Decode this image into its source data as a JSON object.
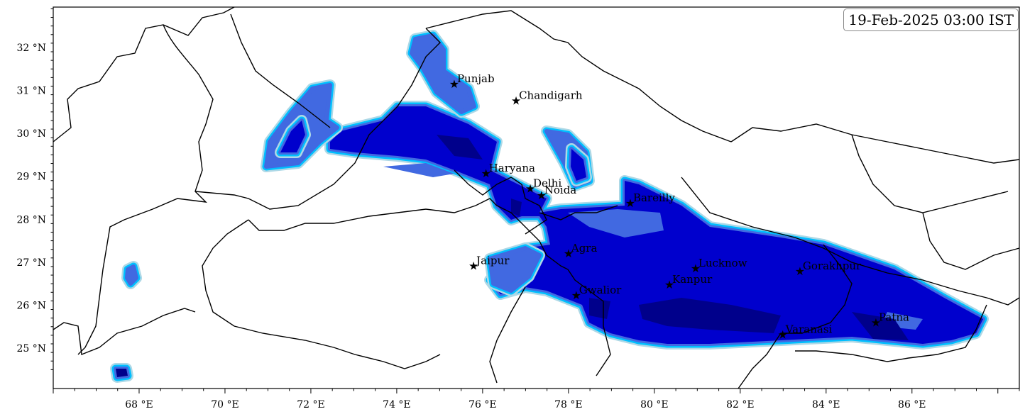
{
  "timestamp": "19-Feb-2025 03:00 IST",
  "map": {
    "lon_range": [
      66.0,
      88.5
    ],
    "lat_range": [
      24.06,
      32.94
    ],
    "x_ticks": [
      {
        "value": 68,
        "label": "68 °E"
      },
      {
        "value": 70,
        "label": "70 °E"
      },
      {
        "value": 72,
        "label": "72 °E"
      },
      {
        "value": 74,
        "label": "74 °E"
      },
      {
        "value": 76,
        "label": "76 °E"
      },
      {
        "value": 78,
        "label": "78 °E"
      },
      {
        "value": 80,
        "label": "80 °E"
      },
      {
        "value": 82,
        "label": "82 °E"
      },
      {
        "value": 84,
        "label": "84 °E"
      },
      {
        "value": 86,
        "label": "86 °E"
      }
    ],
    "y_ticks": [
      {
        "value": 25,
        "label": "25 °N"
      },
      {
        "value": 26,
        "label": "26 °N"
      },
      {
        "value": 27,
        "label": "27 °N"
      },
      {
        "value": 28,
        "label": "28 °N"
      },
      {
        "value": 29,
        "label": "29 °N"
      },
      {
        "value": 30,
        "label": "30 °N"
      },
      {
        "value": 31,
        "label": "31 °N"
      },
      {
        "value": 32,
        "label": "32 °N"
      }
    ],
    "fill_colors": [
      "#add8e6",
      "#00bfff",
      "#4169e1",
      "#0000cd",
      "#00008b"
    ],
    "cities": [
      {
        "name": "Punjab",
        "lon": 75.34,
        "lat": 31.14
      },
      {
        "name": "Chandigarh",
        "lon": 76.78,
        "lat": 30.75
      },
      {
        "name": "Haryana",
        "lon": 76.08,
        "lat": 29.06
      },
      {
        "name": "Delhi",
        "lon": 77.11,
        "lat": 28.71
      },
      {
        "name": "Noida",
        "lon": 77.37,
        "lat": 28.55
      },
      {
        "name": "Bareilly",
        "lon": 79.44,
        "lat": 28.37
      },
      {
        "name": "Agra",
        "lon": 78.0,
        "lat": 27.2
      },
      {
        "name": "Jaipur",
        "lon": 75.79,
        "lat": 26.91
      },
      {
        "name": "Lucknow",
        "lon": 80.96,
        "lat": 26.85
      },
      {
        "name": "Gorakhpur",
        "lon": 83.39,
        "lat": 26.78
      },
      {
        "name": "Kanpur",
        "lon": 80.35,
        "lat": 26.47
      },
      {
        "name": "Gwalior",
        "lon": 78.18,
        "lat": 26.22
      },
      {
        "name": "Patna",
        "lon": 85.16,
        "lat": 25.59
      },
      {
        "name": "Varanasi",
        "lon": 82.99,
        "lat": 25.31
      }
    ]
  }
}
